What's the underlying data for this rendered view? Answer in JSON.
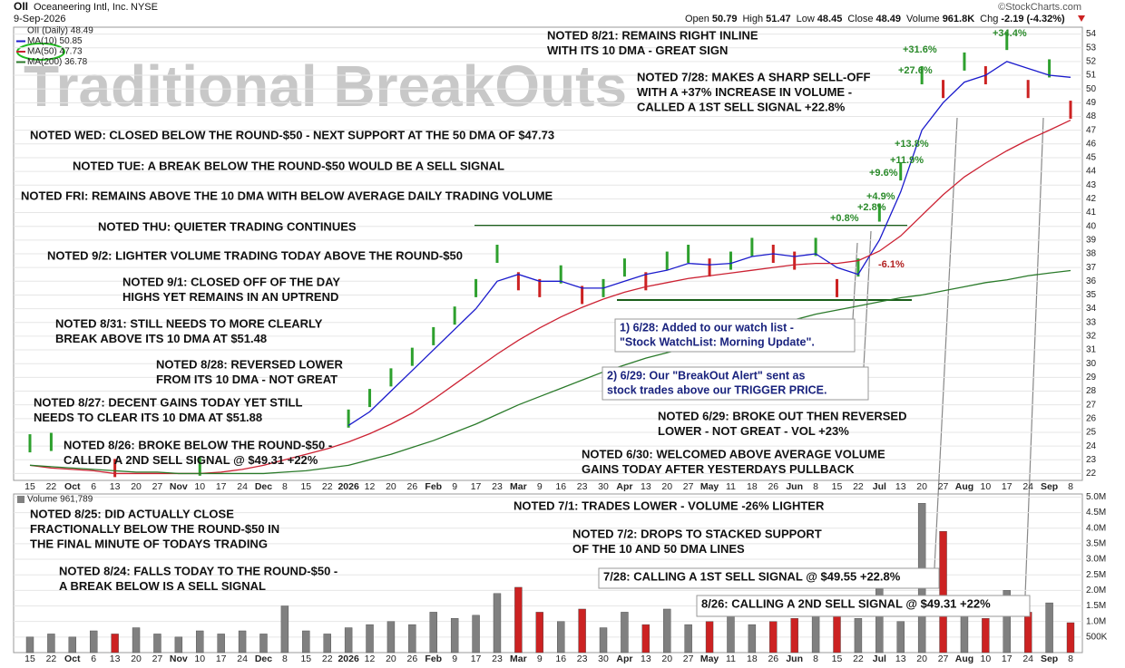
{
  "header": {
    "symbol": "OII",
    "company": "Oceaneering Intl, Inc.",
    "exchange": "NYSE",
    "date": "9-Sep-2026",
    "source": "©StockCharts.com",
    "quote": [
      {
        "label": "Open",
        "value": "50.79"
      },
      {
        "label": "High",
        "value": "51.47"
      },
      {
        "label": "Low",
        "value": "48.45"
      },
      {
        "label": "Close",
        "value": "48.49"
      },
      {
        "label": "Volume",
        "value": "961.8K"
      },
      {
        "label": "Chg",
        "value": "-2.19 (-4.32%)"
      }
    ]
  },
  "watermark": "Traditional BreakOuts",
  "notes": [
    {
      "lines": [
        "NOTED 8/21: REMAINS RIGHT INLINE",
        "WITH ITS 10 DMA - GREAT SIGN"
      ]
    },
    {
      "lines": [
        "NOTED 7/28: MAKES A SHARP SELL-OFF",
        "WITH A +37% INCREASE IN VOLUME -",
        "CALLED A 1ST SELL SIGNAL +22.8%"
      ]
    },
    {
      "lines": [
        "NOTED WED: CLOSED BELOW THE ROUND-$50 - NEXT SUPPORT AT THE 50 DMA OF $47.73"
      ]
    },
    {
      "lines": [
        "NOTED TUE: A BREAK BELOW THE ROUND-$50 WOULD BE A SELL SIGNAL"
      ]
    },
    {
      "lines": [
        "NOTED FRI: REMAINS ABOVE THE 10 DMA WITH BELOW AVERAGE DAILY TRADING VOLUME"
      ]
    },
    {
      "lines": [
        "NOTED THU: QUIETER TRADING CONTINUES"
      ]
    },
    {
      "lines": [
        "NOTED 9/2: LIGHTER VOLUME TRADING TODAY ABOVE THE ROUND-$50"
      ]
    },
    {
      "lines": [
        "NOTED 9/1: CLOSED OFF OF THE DAY",
        "HIGHS YET REMAINS IN AN UPTREND"
      ]
    },
    {
      "lines": [
        "NOTED 8/31: STILL NEEDS TO MORE CLEARLY",
        "BREAK ABOVE ITS 10 DMA AT $51.48"
      ]
    },
    {
      "lines": [
        "NOTED 8/28: REVERSED LOWER",
        "FROM ITS 10 DMA - NOT GREAT"
      ]
    },
    {
      "lines": [
        "NOTED 8/27: DECENT GAINS TODAY YET STILL",
        "NEEDS TO CLEAR ITS 10 DMA AT $51.88"
      ]
    },
    {
      "lines": [
        "NOTED 8/26: BROKE BELOW THE ROUND-$50 -",
        "CALLED A 2ND SELL SIGNAL @ $49.31 +22%"
      ]
    },
    {
      "lines": [
        "NOTED 6/29: BROKE OUT THEN REVERSED",
        "LOWER - NOT GREAT - VOL +23%"
      ]
    },
    {
      "lines": [
        "NOTED 6/30: WELCOMED ABOVE AVERAGE VOLUME",
        "GAINS TODAY AFTER YESTERDAYS PULLBACK"
      ]
    },
    {
      "lines": [
        "NOTED 7/1: TRADES LOWER - VOLUME -26% LIGHTER"
      ]
    },
    {
      "lines": [
        "NOTED 7/2: DROPS TO STACKED SUPPORT",
        "OF THE 10 AND 50 DMA LINES"
      ]
    },
    {
      "lines": [
        "NOTED 8/25: DID ACTUALLY CLOSE",
        "FRACTIONALLY BELOW THE ROUND-$50 IN",
        "THE FINAL MINUTE OF TODAYS TRADING"
      ]
    },
    {
      "lines": [
        "NOTED 8/24: FALLS TODAY TO THE ROUND-$50 -",
        "A BREAK BELOW IS A SELL SIGNAL"
      ]
    }
  ],
  "callouts": [
    {
      "lines": [
        "1) 6/28: Added to our watch list -",
        "\"Stock WatchList: Morning Update\"."
      ]
    },
    {
      "lines": [
        "2) 6/29: Our \"BreakOut Alert\" sent as",
        "stock trades above our TRIGGER PRICE."
      ]
    },
    {
      "lines": [
        "7/28: CALLING A 1ST SELL SIGNAL @ $49.55  +22.8%"
      ]
    },
    {
      "lines": [
        "8/26: CALLING A 2ND SELL SIGNAL @ $49.31 +22%"
      ]
    }
  ],
  "gain_labels": [
    {
      "text": "+34.4%",
      "color": "#2a8a2a"
    },
    {
      "text": "+31.6%",
      "color": "#2a8a2a"
    },
    {
      "text": "+27.6%",
      "color": "#2a8a2a"
    },
    {
      "text": "+13.8%",
      "color": "#2a8a2a"
    },
    {
      "text": "+11.9%",
      "color": "#2a8a2a"
    },
    {
      "text": "+9.6%",
      "color": "#2a8a2a"
    },
    {
      "text": "+4.9%",
      "color": "#2a8a2a"
    },
    {
      "text": "+2.8%",
      "color": "#2a8a2a"
    },
    {
      "text": "+0.8%",
      "color": "#2a8a2a"
    },
    {
      "text": "-6.1%",
      "color": "#b22222"
    }
  ],
  "chart_data": [
    {
      "type": "price",
      "categories": [
        "15",
        "22",
        "Oct",
        "6",
        "13",
        "20",
        "27",
        "Nov",
        "10",
        "17",
        "24",
        "Dec",
        "8",
        "15",
        "22",
        "2026",
        "12",
        "20",
        "26",
        "Feb",
        "9",
        "17",
        "23",
        "Mar",
        "9",
        "16",
        "23",
        "30",
        "Apr",
        "13",
        "20",
        "27",
        "May",
        "11",
        "18",
        "26",
        "Jun",
        "8",
        "15",
        "22",
        "Jul",
        "13",
        "20",
        "27",
        "Aug",
        "10",
        "17",
        "24",
        "Sep",
        "8"
      ],
      "series": [
        {
          "name": "OII (Daily) 48.49",
          "up_color": "#2ea02e",
          "down_color": "#cc2222",
          "values": [
            24.2,
            24.3,
            null,
            null,
            22.4,
            null,
            null,
            null,
            22.5,
            null,
            null,
            null,
            null,
            null,
            null,
            26.0,
            27.5,
            29.0,
            30.5,
            32.0,
            33.5,
            35.5,
            38.0,
            36.0,
            35.5,
            36.5,
            35.0,
            35.5,
            37.0,
            36.0,
            37.5,
            38.0,
            37.0,
            37.5,
            38.5,
            38.0,
            37.5,
            38.5,
            35.5,
            37.0,
            41.0,
            44.0,
            51.0,
            50.0,
            52.0,
            51.0,
            53.5,
            50.0,
            51.5,
            48.49
          ]
        },
        {
          "name": "MA(10) 50.85",
          "color": "#1a1acc",
          "values": [
            null,
            null,
            null,
            null,
            null,
            null,
            null,
            null,
            null,
            null,
            null,
            null,
            null,
            null,
            null,
            25.5,
            26.5,
            28.0,
            29.5,
            31.0,
            32.5,
            34.0,
            36.0,
            36.5,
            36.0,
            36.0,
            35.5,
            35.5,
            36.0,
            36.5,
            36.8,
            37.3,
            37.2,
            37.3,
            37.8,
            38.0,
            37.8,
            38.0,
            37.0,
            36.5,
            39.0,
            42.5,
            47.0,
            49.0,
            50.5,
            51.0,
            52.0,
            51.5,
            51.0,
            50.85
          ]
        },
        {
          "name": "MA(50) 47.73",
          "color": "#cc2233",
          "values": [
            22.6,
            22.4,
            22.3,
            22.2,
            22.0,
            22.0,
            22.0,
            22.0,
            22.0,
            22.1,
            22.3,
            22.6,
            23.0,
            23.4,
            23.8,
            24.3,
            24.9,
            25.6,
            26.4,
            27.4,
            28.5,
            29.6,
            30.7,
            31.7,
            32.6,
            33.4,
            34.1,
            34.7,
            35.2,
            35.6,
            35.9,
            36.2,
            36.4,
            36.6,
            36.8,
            37.0,
            37.2,
            37.3,
            37.3,
            37.5,
            38.2,
            39.3,
            40.8,
            42.3,
            43.6,
            44.6,
            45.5,
            46.3,
            47.0,
            47.73
          ]
        },
        {
          "name": "MA(200) 36.78",
          "color": "#2a7a2a",
          "values": [
            22.6,
            22.5,
            22.4,
            22.3,
            22.2,
            22.1,
            22.1,
            22.0,
            22.0,
            22.0,
            22.0,
            22.0,
            22.1,
            22.2,
            22.4,
            22.6,
            23.0,
            23.4,
            23.9,
            24.4,
            25.0,
            25.6,
            26.3,
            27.0,
            27.6,
            28.2,
            28.8,
            29.4,
            29.9,
            30.4,
            30.8,
            31.2,
            31.6,
            32.0,
            32.4,
            32.8,
            33.2,
            33.6,
            33.9,
            34.2,
            34.5,
            34.8,
            35.0,
            35.3,
            35.6,
            35.9,
            36.1,
            36.4,
            36.6,
            36.78
          ]
        }
      ],
      "ylim": [
        21.5,
        54.5
      ],
      "yticks": [
        22,
        23,
        24,
        25,
        26,
        27,
        28,
        29,
        30,
        31,
        32,
        33,
        34,
        35,
        36,
        37,
        38,
        39,
        40,
        41,
        42,
        43,
        44,
        45,
        46,
        47,
        48,
        49,
        50,
        51,
        52,
        53,
        54
      ],
      "grid": true
    },
    {
      "type": "volume",
      "categories": [
        "15",
        "22",
        "Oct",
        "6",
        "13",
        "20",
        "27",
        "Nov",
        "10",
        "17",
        "24",
        "Dec",
        "8",
        "15",
        "22",
        "2026",
        "12",
        "20",
        "26",
        "Feb",
        "9",
        "17",
        "23",
        "Mar",
        "9",
        "16",
        "23",
        "30",
        "Apr",
        "13",
        "20",
        "27",
        "May",
        "11",
        "18",
        "26",
        "Jun",
        "8",
        "15",
        "22",
        "Jul",
        "13",
        "20",
        "27",
        "Aug",
        "10",
        "17",
        "24",
        "Sep",
        "8"
      ],
      "series": [
        {
          "name": "Volume 961,789",
          "color": "#808080",
          "down_color": "#cc2222",
          "values": [
            0.5,
            0.6,
            0.5,
            0.7,
            0.6,
            0.8,
            0.6,
            0.5,
            0.7,
            0.6,
            0.7,
            0.6,
            1.5,
            0.7,
            0.6,
            0.8,
            0.9,
            1.0,
            0.9,
            1.3,
            1.1,
            1.2,
            1.9,
            2.1,
            1.3,
            1.0,
            1.4,
            0.8,
            1.3,
            0.9,
            1.4,
            0.9,
            1.0,
            1.3,
            0.9,
            1.0,
            1.1,
            1.2,
            1.4,
            1.1,
            2.3,
            1.0,
            4.8,
            3.9,
            1.4,
            1.1,
            2.0,
            1.3,
            1.6,
            0.961789
          ]
        }
      ],
      "ylim": [
        0,
        5.1
      ],
      "yticks": [
        {
          "value": 0.5,
          "label": "500K"
        },
        {
          "value": 1.0,
          "label": "1.0M"
        },
        {
          "value": 1.5,
          "label": "1.5M"
        },
        {
          "value": 2.0,
          "label": "2.0M"
        },
        {
          "value": 2.5,
          "label": "2.5M"
        },
        {
          "value": 3.0,
          "label": "3.0M"
        },
        {
          "value": 3.5,
          "label": "3.5M"
        },
        {
          "value": 4.0,
          "label": "4.0M"
        },
        {
          "value": 4.5,
          "label": "4.5M"
        },
        {
          "value": 5.0,
          "label": "5.0M"
        }
      ],
      "grid": true
    }
  ]
}
